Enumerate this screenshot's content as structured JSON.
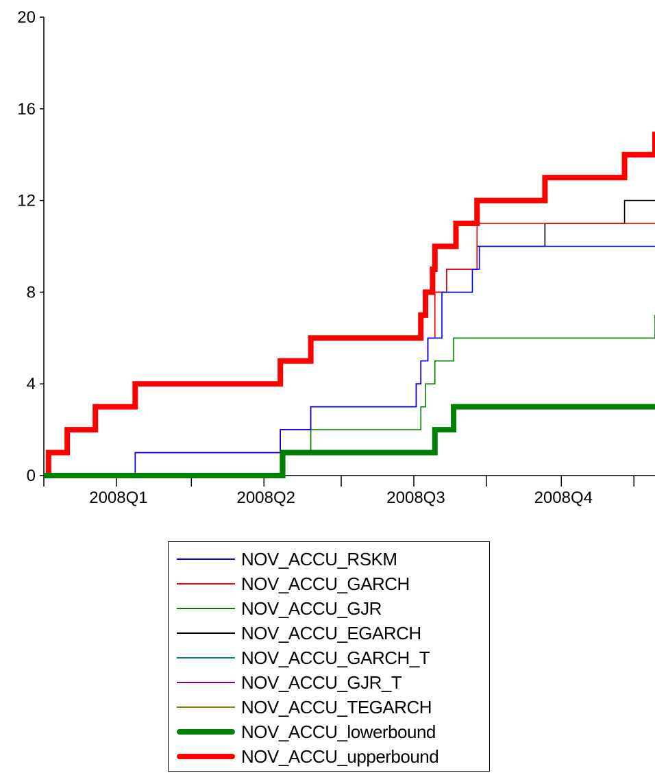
{
  "chart_data": {
    "type": "line",
    "title": "",
    "xlabel": "",
    "ylabel": "",
    "ylim": [
      0,
      20
    ],
    "y_ticks": [
      "0",
      "4",
      "8",
      "12",
      "16",
      "20"
    ],
    "x_tick_labels": [
      "2008Q1",
      "2008Q2",
      "2008Q3",
      "2008Q4"
    ],
    "xlim": [
      0,
      261
    ],
    "grid": false,
    "legend_position": "bottom-center",
    "series": [
      {
        "name": "NOV_ACCU_RSKM",
        "color": "#0000ff",
        "weight": "thin",
        "x": [
          0,
          22,
          39,
          101,
          114,
          159,
          161,
          164,
          170,
          183,
          186,
          209,
          230,
          261
        ],
        "values": [
          0,
          0,
          1,
          2,
          3,
          4,
          5,
          6,
          8,
          9,
          10,
          10,
          10,
          10
        ]
      },
      {
        "name": "NOV_ACCU_GARCH",
        "color": "#ff0000",
        "weight": "thin",
        "x": [
          0,
          22,
          39,
          101,
          114,
          159,
          161,
          164,
          167,
          172,
          185,
          261
        ],
        "values": [
          0,
          0,
          1,
          2,
          3,
          4,
          5,
          6,
          8,
          9,
          11,
          11
        ]
      },
      {
        "name": "NOV_ACCU_GJR",
        "color": "#008000",
        "weight": "thin",
        "x": [
          0,
          22,
          101,
          114,
          161,
          163,
          167,
          175,
          261
        ],
        "values": [
          0,
          0,
          1,
          2,
          3,
          4,
          5,
          6,
          7
        ]
      },
      {
        "name": "NOV_ACCU_EGARCH",
        "color": "#000000",
        "weight": "thin",
        "x": [
          0,
          22,
          39,
          101,
          114,
          159,
          161,
          164,
          167,
          172,
          185,
          214,
          248,
          261
        ],
        "values": [
          0,
          0,
          1,
          2,
          3,
          4,
          5,
          6,
          8,
          9,
          10,
          11,
          12,
          12
        ]
      },
      {
        "name": "NOV_ACCU_GARCH_T",
        "color": "#008080",
        "weight": "thin",
        "x": [],
        "values": []
      },
      {
        "name": "NOV_ACCU_GJR_T",
        "color": "#800080",
        "weight": "thin",
        "x": [],
        "values": []
      },
      {
        "name": "NOV_ACCU_TEGARCH",
        "color": "#808000",
        "weight": "thin",
        "x": [],
        "values": []
      },
      {
        "name": "NOV_ACCU_lowerbound",
        "color": "#008000",
        "weight": "thick",
        "x": [
          0,
          102,
          167,
          175,
          261
        ],
        "values": [
          0,
          1,
          2,
          3,
          3
        ]
      },
      {
        "name": "NOV_ACCU_upperbound",
        "color": "#ff0000",
        "weight": "thick",
        "x": [
          0,
          2,
          10,
          22,
          39,
          101,
          114,
          161,
          163,
          166,
          167,
          176,
          185,
          214,
          248,
          261
        ],
        "values": [
          0,
          1,
          2,
          3,
          4,
          5,
          6,
          7,
          8,
          9,
          10,
          11,
          12,
          13,
          14,
          15
        ]
      }
    ]
  }
}
